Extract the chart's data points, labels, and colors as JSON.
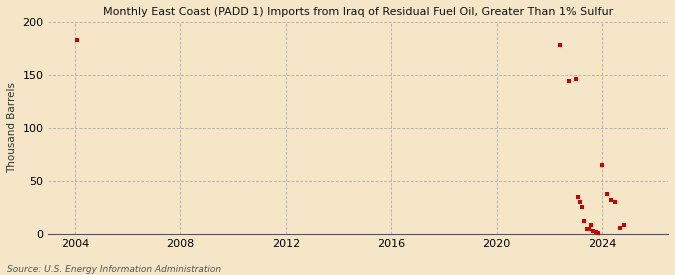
{
  "title": "Monthly East Coast (PADD 1) Imports from Iraq of Residual Fuel Oil, Greater Than 1% Sulfur",
  "ylabel": "Thousand Barrels",
  "source": "Source: U.S. Energy Information Administration",
  "background_color": "#f5e6c8",
  "plot_background": "#f5e6c8",
  "dot_color": "#cc0000",
  "dot_size": 10,
  "xlim": [
    2003.0,
    2026.5
  ],
  "ylim": [
    0,
    200
  ],
  "yticks": [
    0,
    50,
    100,
    150,
    200
  ],
  "xticks": [
    2004,
    2008,
    2012,
    2016,
    2020,
    2024
  ],
  "data_x": [
    2004.08,
    2022.42,
    2022.75,
    2023.0,
    2023.08,
    2023.17,
    2023.25,
    2023.33,
    2023.42,
    2023.5,
    2023.58,
    2023.67,
    2023.75,
    2023.83,
    2024.0,
    2024.17,
    2024.33,
    2024.5,
    2024.67,
    2024.83
  ],
  "data_y": [
    183,
    178,
    144,
    146,
    35,
    30,
    25,
    12,
    5,
    5,
    8,
    3,
    2,
    1,
    65,
    38,
    32,
    30,
    6,
    8
  ]
}
